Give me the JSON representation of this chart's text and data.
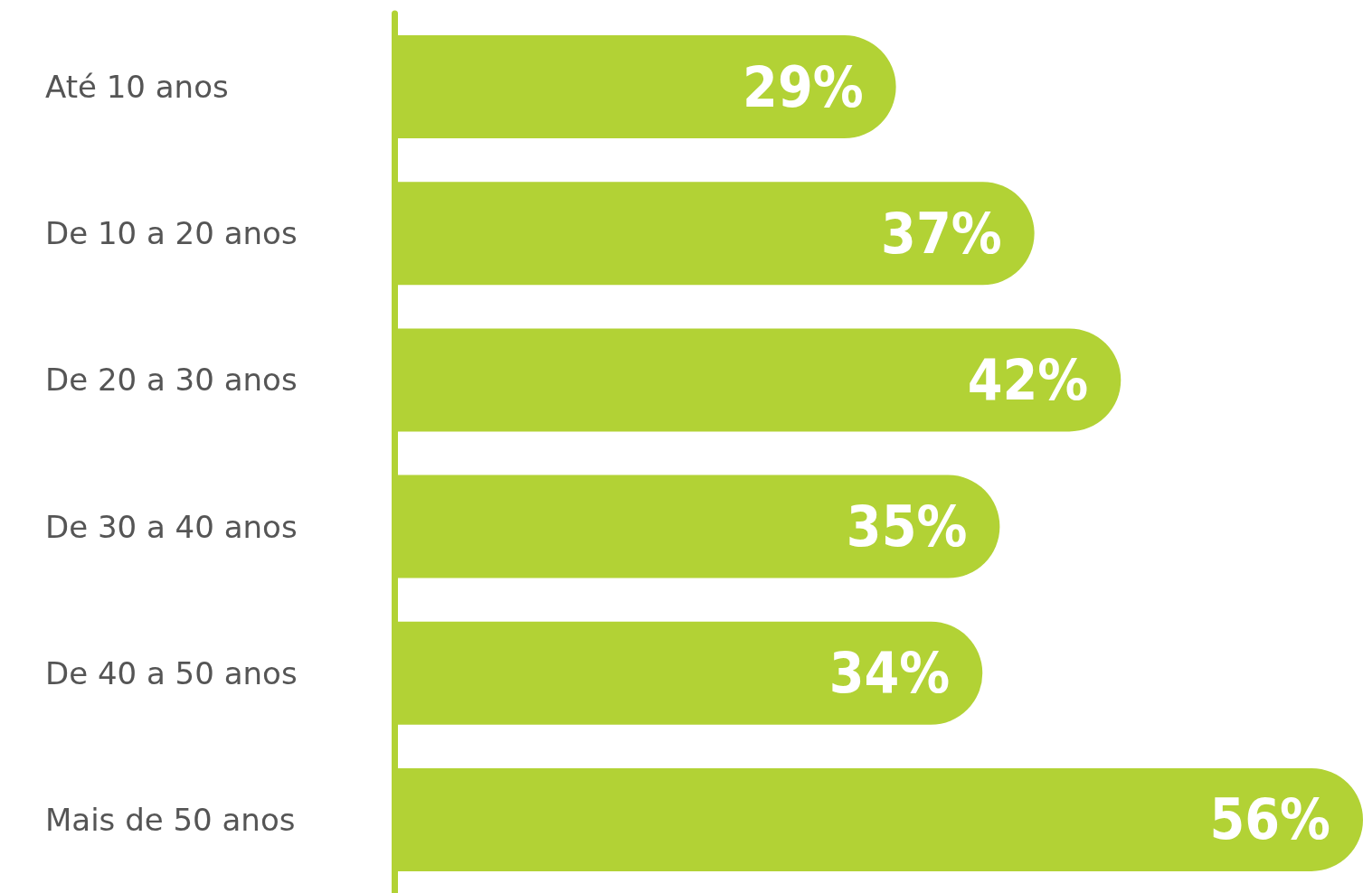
{
  "chart_data": {
    "type": "bar",
    "orientation": "horizontal",
    "categories": [
      "Até 10 anos",
      "De 10 a 20 anos",
      "De 20 a 30 anos",
      "De 30 a 40 anos",
      "De 40 a 50 anos",
      "Mais de 50 anos"
    ],
    "values": [
      29,
      37,
      42,
      35,
      34,
      56
    ],
    "value_labels": [
      "29%",
      "37%",
      "42%",
      "35%",
      "34%",
      "56%"
    ],
    "color": "#b2d235",
    "tick_labels": "y"
  }
}
